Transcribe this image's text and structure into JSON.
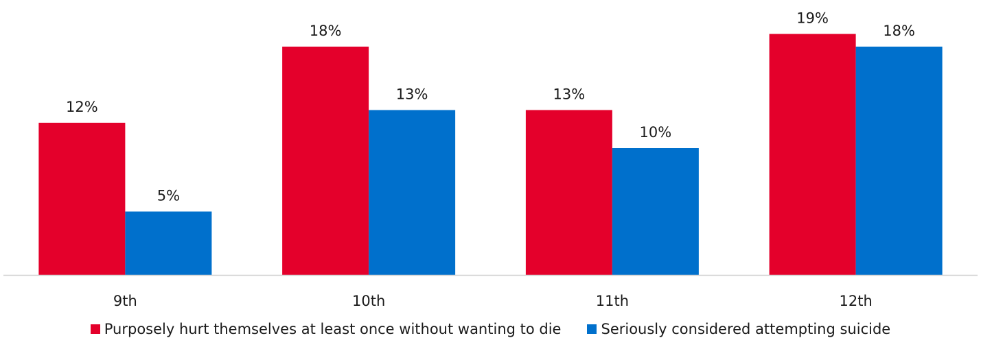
{
  "chart_data": {
    "type": "bar",
    "categories": [
      "9th",
      "10th",
      "11th",
      "12th"
    ],
    "series": [
      {
        "name": "Purposely hurt themselves at least once without wanting to die",
        "values": [
          12,
          18,
          13,
          19
        ],
        "labels": [
          "12%",
          "18%",
          "13%",
          "19%"
        ],
        "color": "#e4002b"
      },
      {
        "name": "Seriously considered attempting suicide",
        "values": [
          5,
          13,
          10,
          18
        ],
        "labels": [
          "5%",
          "13%",
          "10%",
          "18%"
        ],
        "color": "#0070cc"
      }
    ],
    "ylim": [
      0,
      20
    ],
    "grid": false,
    "legend_position": "bottom",
    "baseline_color": "#d0d0d0"
  }
}
